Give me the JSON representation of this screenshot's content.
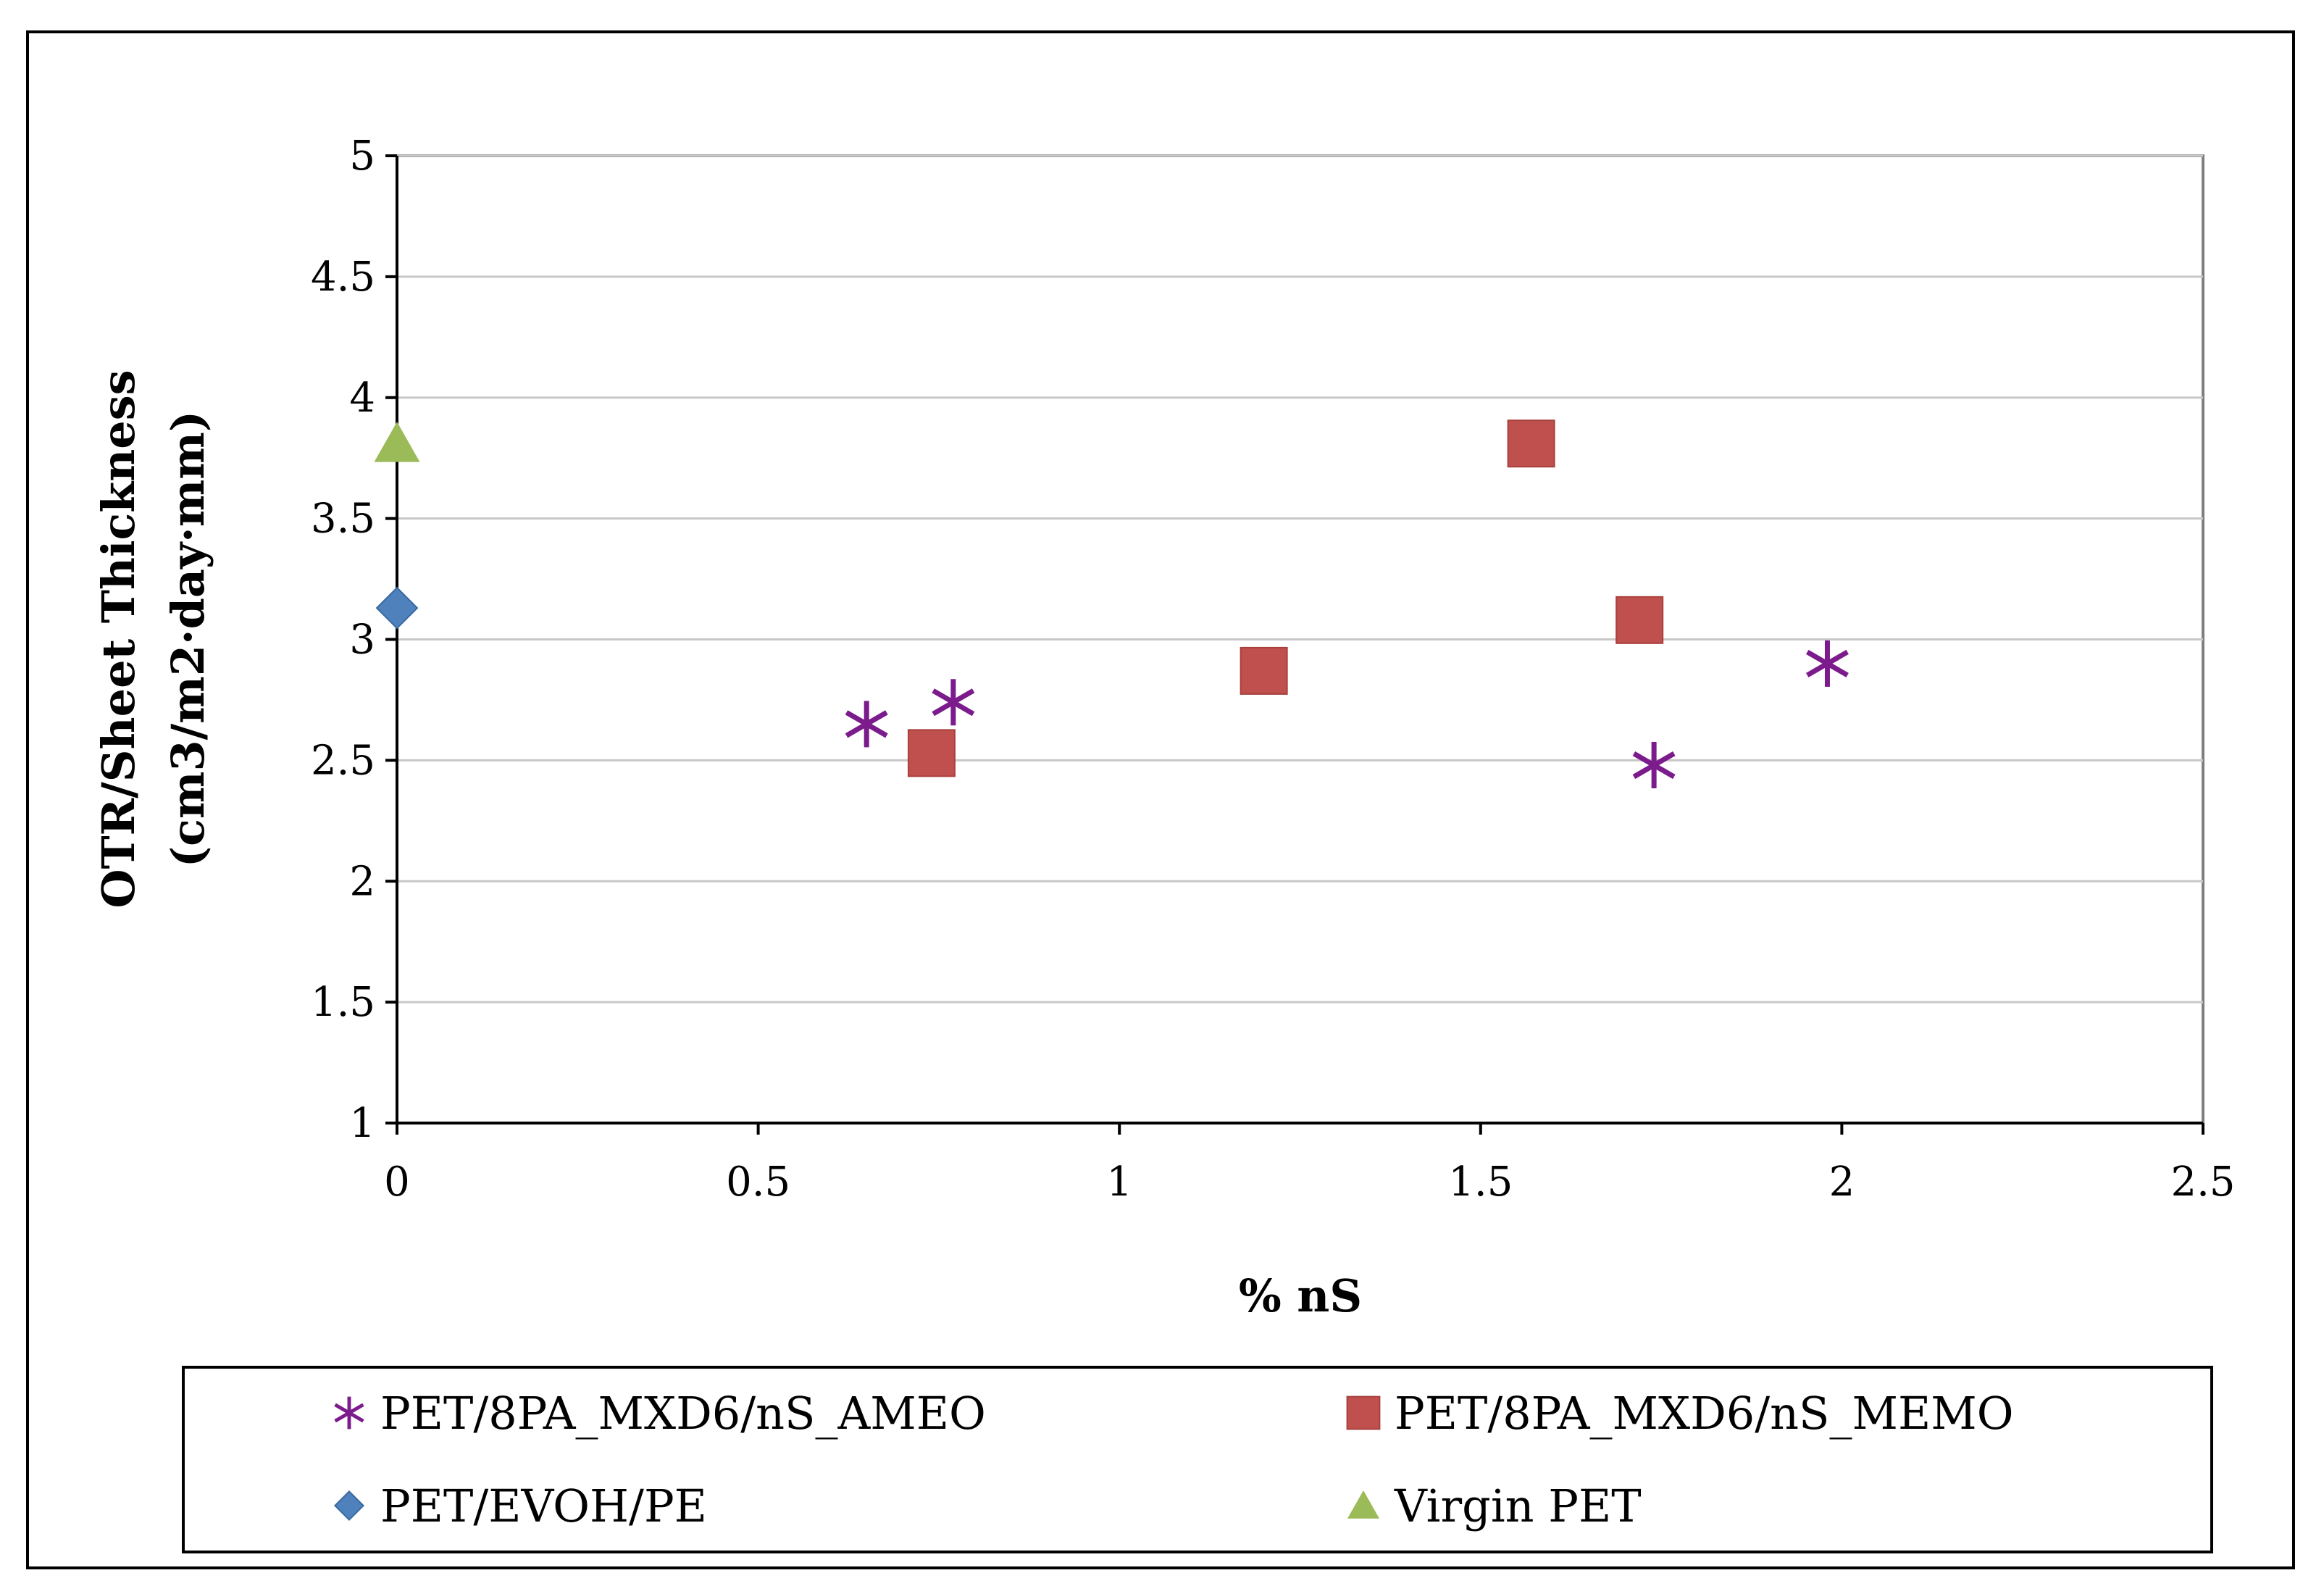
{
  "chart_data": {
    "type": "scatter",
    "title": "",
    "xlabel": "% nS",
    "ylabel_line1": "OTR/Sheet Thickness",
    "ylabel_line2": "(cm3/m2·day·mm)",
    "xlim": [
      0,
      2.5
    ],
    "ylim": [
      1,
      5
    ],
    "x_ticks": [
      "0",
      "0.5",
      "1",
      "1.5",
      "2",
      "2.5"
    ],
    "y_ticks": [
      "1",
      "1.5",
      "2",
      "2.5",
      "3",
      "3.5",
      "4",
      "4.5",
      "5"
    ],
    "grid": "horizontal",
    "legend_position": "bottom",
    "series": [
      {
        "name": "PET/8PA_MXD6/nS_AMEO",
        "marker": "star",
        "color": "#7B1B8C",
        "points": [
          [
            0.65,
            2.65
          ],
          [
            0.77,
            2.74
          ],
          [
            1.74,
            2.48
          ],
          [
            1.98,
            2.9
          ]
        ]
      },
      {
        "name": "PET/8PA_MXD6/nS_MEMO",
        "marker": "square",
        "color": "#C0504D",
        "points": [
          [
            0.74,
            2.53
          ],
          [
            1.2,
            2.87
          ],
          [
            1.57,
            3.81
          ],
          [
            1.72,
            3.08
          ]
        ]
      },
      {
        "name": "PET/EVOH/PE",
        "marker": "diamond",
        "color": "#4F81BD",
        "points": [
          [
            0.0,
            3.13
          ]
        ]
      },
      {
        "name": "Virgin PET",
        "marker": "triangle",
        "color": "#9BBB59",
        "points": [
          [
            0.0,
            3.81
          ]
        ]
      }
    ]
  }
}
